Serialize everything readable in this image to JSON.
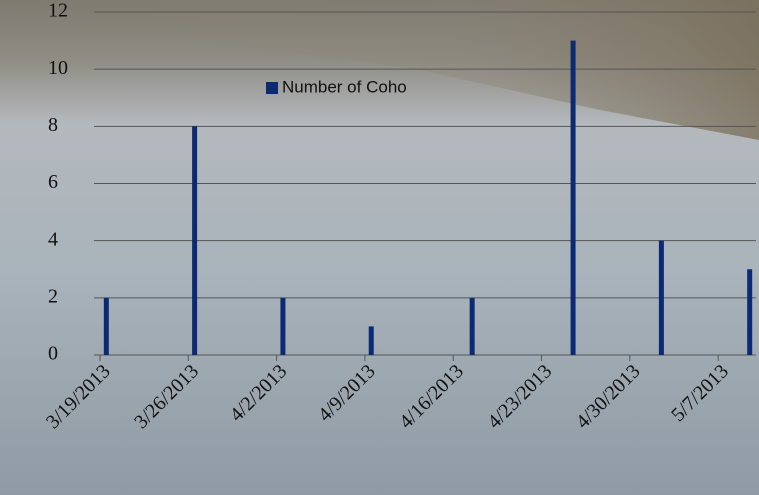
{
  "chart_data": {
    "type": "bar",
    "x": [
      "3/19/2013",
      "3/26/2013",
      "4/2/2013",
      "4/9/2013",
      "4/17/2013",
      "4/25/2013",
      "5/2/2013",
      "5/9/2013"
    ],
    "series": [
      {
        "name": "Number of Coho",
        "color": "#0c2a72",
        "values": [
          2,
          8,
          2,
          1,
          2,
          11,
          4,
          3
        ]
      }
    ],
    "xlim": [
      "3/19/2013",
      "5/10/2013"
    ],
    "xticks": [
      "3/19/2013",
      "3/26/2013",
      "4/2/2013",
      "4/9/2013",
      "4/16/2013",
      "4/23/2013",
      "4/30/2013",
      "5/7/2013"
    ],
    "ylim": [
      0,
      12
    ],
    "yticks": [
      0,
      2,
      4,
      6,
      8,
      10,
      12
    ],
    "grid": true
  }
}
